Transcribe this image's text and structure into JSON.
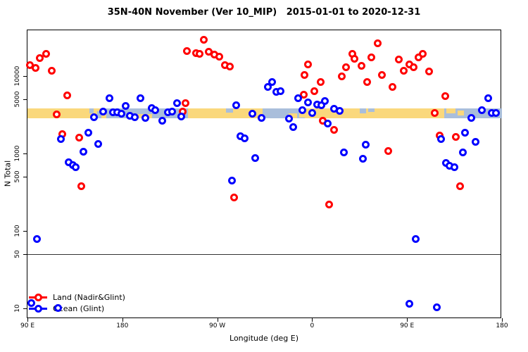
{
  "title": "35N-40N November (Ver 10_MIP)   2015-01-01 to 2020-12-31",
  "chart_data": {
    "type": "scatter",
    "title": "35N-40N November (Ver 10_MIP)   2015-01-01 to 2020-12-31",
    "xlabel": "Longitude (deg E)",
    "ylabel": "N Total",
    "x_axis": {
      "range": [
        90,
        540
      ],
      "ticks": [
        {
          "value": 90,
          "label": "90 E"
        },
        {
          "value": 180,
          "label": "180"
        },
        {
          "value": 270,
          "label": "90 W"
        },
        {
          "value": 360,
          "label": "0"
        },
        {
          "value": 450,
          "label": "90 E"
        },
        {
          "value": 540,
          "label": "180"
        }
      ]
    },
    "y_axis": {
      "scale": "log10",
      "range": [
        7.3,
        39000
      ],
      "ticks": [
        {
          "value": 10,
          "label": "10"
        },
        {
          "value": 50,
          "label": "50"
        },
        {
          "value": 100,
          "label": "100"
        },
        {
          "value": 500,
          "label": "500"
        },
        {
          "value": 1000,
          "label": "1000"
        },
        {
          "value": 5000,
          "label": "5000"
        },
        {
          "value": 10000,
          "label": "10000"
        }
      ]
    },
    "grid": false,
    "reference_line": {
      "y": 50,
      "color": "#333333"
    },
    "band": {
      "description": "land/ocean strip along longitude",
      "n_low": 2850,
      "n_high": 3850,
      "colors": {
        "land": "#FAD87C",
        "ocean": "#A9BEDB"
      },
      "segments": [
        {
          "from": 90,
          "to": 165,
          "color": "land"
        },
        {
          "from": 165,
          "to": 242,
          "color": "ocean"
        },
        {
          "from": 242,
          "to": 313,
          "color": "land"
        },
        {
          "from": 313,
          "to": 353,
          "color": "ocean"
        },
        {
          "from": 353,
          "to": 485,
          "color": "land"
        },
        {
          "from": 485,
          "to": 540,
          "color": "ocean"
        }
      ],
      "patches": [
        {
          "from": 149,
          "to": 153,
          "color": "ocean",
          "v0": 0,
          "v1": 0.5
        },
        {
          "from": 156,
          "to": 160,
          "color": "ocean",
          "v0": 0.3,
          "v1": 1
        },
        {
          "from": 162,
          "to": 165,
          "color": "ocean",
          "v0": 0,
          "v1": 0.6
        },
        {
          "from": 191,
          "to": 208,
          "color": "land",
          "v0": 0.55,
          "v1": 1
        },
        {
          "from": 278,
          "to": 285,
          "color": "ocean",
          "v0": 0,
          "v1": 0.45
        },
        {
          "from": 338,
          "to": 346,
          "color": "land",
          "v0": 0.5,
          "v1": 1
        },
        {
          "from": 348,
          "to": 353,
          "color": "land",
          "v0": 0.2,
          "v1": 0.9
        },
        {
          "from": 405,
          "to": 411,
          "color": "ocean",
          "v0": 0,
          "v1": 0.5
        },
        {
          "from": 413,
          "to": 419,
          "color": "ocean",
          "v0": 0,
          "v1": 0.4
        },
        {
          "from": 487,
          "to": 496,
          "color": "land",
          "v0": 0,
          "v1": 0.55
        },
        {
          "from": 498,
          "to": 504,
          "color": "land",
          "v0": 0.25,
          "v1": 0.75
        },
        {
          "from": 519,
          "to": 524,
          "color": "land",
          "v0": 0,
          "v1": 0.4
        }
      ]
    },
    "legend": {
      "position": "bottom-left"
    },
    "series": [
      {
        "name": "Land (Nadir&Glint)",
        "color": "#FF0000",
        "marker": "open-circle",
        "points": [
          [
            92,
            13700
          ],
          [
            98,
            12600
          ],
          [
            102,
            17200
          ],
          [
            108,
            19500
          ],
          [
            113,
            11800
          ],
          [
            128,
            5600
          ],
          [
            118,
            3200
          ],
          [
            123,
            1770
          ],
          [
            139,
            1590
          ],
          [
            141,
            380
          ],
          [
            241,
            20900
          ],
          [
            250,
            19900
          ],
          [
            253,
            19300
          ],
          [
            257,
            29600
          ],
          [
            262,
            20800
          ],
          [
            267,
            19100
          ],
          [
            272,
            17900
          ],
          [
            277,
            13700
          ],
          [
            282,
            13400
          ],
          [
            240,
            4500
          ],
          [
            237,
            3500
          ],
          [
            286,
            268
          ],
          [
            352,
            5700
          ],
          [
            353,
            10400
          ],
          [
            356,
            14000
          ],
          [
            362,
            6440
          ],
          [
            368,
            8300
          ],
          [
            370,
            2620
          ],
          [
            376,
            217
          ],
          [
            381,
            2000
          ],
          [
            388,
            10000
          ],
          [
            392,
            12900
          ],
          [
            398,
            19500
          ],
          [
            400,
            16600
          ],
          [
            407,
            13500
          ],
          [
            412,
            8450
          ],
          [
            416,
            17400
          ],
          [
            422,
            26300
          ],
          [
            426,
            10400
          ],
          [
            432,
            1065
          ],
          [
            436,
            7160
          ],
          [
            442,
            16200
          ],
          [
            447,
            11800
          ],
          [
            452,
            14000
          ],
          [
            456,
            12900
          ],
          [
            461,
            17400
          ],
          [
            465,
            19500
          ],
          [
            471,
            11350
          ],
          [
            476,
            3310
          ],
          [
            481,
            1720
          ],
          [
            486,
            5560
          ],
          [
            496,
            1620
          ],
          [
            500,
            380
          ]
        ]
      },
      {
        "name": "Ocean (Glint)",
        "color": "#0000FF",
        "marker": "open-circle",
        "points": [
          [
            94,
            11.6
          ],
          [
            99,
            79
          ],
          [
            119,
            10.2
          ],
          [
            122,
            1550
          ],
          [
            129,
            765
          ],
          [
            133,
            713
          ],
          [
            136,
            670
          ],
          [
            143,
            1050
          ],
          [
            148,
            1840
          ],
          [
            153,
            2950
          ],
          [
            157,
            1340
          ],
          [
            162,
            3440
          ],
          [
            168,
            5130
          ],
          [
            171,
            3370
          ],
          [
            175,
            3370
          ],
          [
            179,
            3230
          ],
          [
            183,
            4070
          ],
          [
            187,
            3090
          ],
          [
            192,
            2950
          ],
          [
            197,
            5130
          ],
          [
            202,
            2850
          ],
          [
            208,
            3890
          ],
          [
            211,
            3630
          ],
          [
            218,
            2670
          ],
          [
            223,
            3370
          ],
          [
            227,
            3510
          ],
          [
            232,
            4470
          ],
          [
            236,
            3020
          ],
          [
            284,
            450
          ],
          [
            288,
            4170
          ],
          [
            292,
            1660
          ],
          [
            296,
            1580
          ],
          [
            303,
            3240
          ],
          [
            306,
            865
          ],
          [
            312,
            2900
          ],
          [
            318,
            7300
          ],
          [
            322,
            8450
          ],
          [
            326,
            6310
          ],
          [
            330,
            6440
          ],
          [
            338,
            2820
          ],
          [
            342,
            2210
          ],
          [
            347,
            5220
          ],
          [
            351,
            3590
          ],
          [
            356,
            4600
          ],
          [
            360,
            3365
          ],
          [
            365,
            4240
          ],
          [
            369,
            4170
          ],
          [
            372,
            4790
          ],
          [
            375,
            2410
          ],
          [
            381,
            3800
          ],
          [
            386,
            3550
          ],
          [
            390,
            1040
          ],
          [
            408,
            863
          ],
          [
            411,
            1290
          ],
          [
            452,
            11.4
          ],
          [
            458,
            79
          ],
          [
            478,
            10.4
          ],
          [
            482,
            1520
          ],
          [
            487,
            760
          ],
          [
            490,
            686
          ],
          [
            495,
            660
          ],
          [
            503,
            1040
          ],
          [
            505,
            1870
          ],
          [
            511,
            2900
          ],
          [
            515,
            1400
          ],
          [
            521,
            3590
          ],
          [
            527,
            5220
          ],
          [
            530,
            3365
          ],
          [
            534,
            3365
          ]
        ]
      }
    ]
  }
}
